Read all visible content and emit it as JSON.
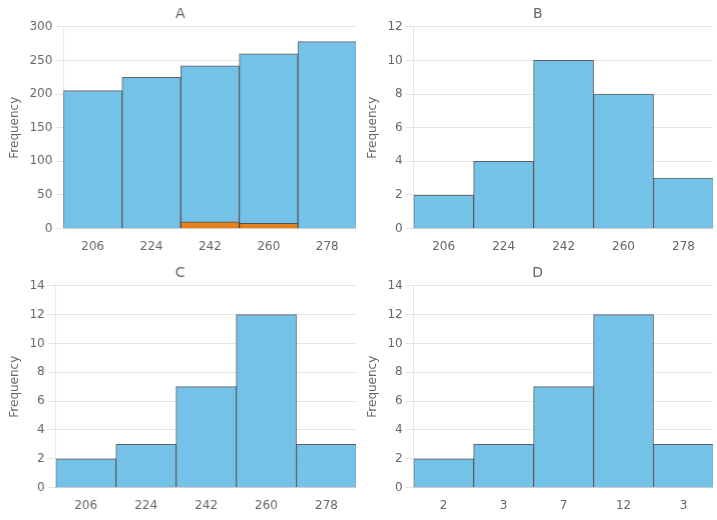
{
  "chart_data": [
    {
      "type": "bar",
      "title": "A",
      "categories": [
        "206",
        "224",
        "242",
        "260",
        "278"
      ],
      "series": [
        {
          "color": "#74C2E8",
          "values": [
            205,
            225,
            242,
            260,
            278
          ]
        },
        {
          "color": "#E8801A",
          "values": [
            0,
            0,
            10,
            8,
            0
          ]
        }
      ],
      "ylabel": "Frequency",
      "ylim": [
        0,
        300
      ],
      "yticks": [
        0,
        50,
        100,
        150,
        200,
        250,
        300
      ],
      "grid": "y"
    },
    {
      "type": "bar",
      "title": "B",
      "categories": [
        "206",
        "224",
        "242",
        "260",
        "278"
      ],
      "series": [
        {
          "color": "#74C2E8",
          "values": [
            2,
            4,
            10,
            8,
            3
          ]
        }
      ],
      "ylabel": "Frequency",
      "ylim": [
        0,
        12
      ],
      "yticks": [
        0,
        2,
        4,
        6,
        8,
        10,
        12
      ],
      "grid": "y"
    },
    {
      "type": "bar",
      "title": "C",
      "categories": [
        "206",
        "224",
        "242",
        "260",
        "278"
      ],
      "series": [
        {
          "color": "#74C2E8",
          "values": [
            2,
            3,
            7,
            12,
            3
          ]
        }
      ],
      "ylabel": "Frequency",
      "ylim": [
        0,
        14
      ],
      "yticks": [
        0,
        2,
        4,
        6,
        8,
        10,
        12,
        14
      ],
      "grid": "y"
    },
    {
      "type": "bar",
      "title": "D",
      "categories": [
        "2",
        "3",
        "7",
        "12",
        "3"
      ],
      "series": [
        {
          "color": "#74C2E8",
          "values": [
            2,
            3,
            7,
            12,
            3
          ]
        }
      ],
      "ylabel": "Frequency",
      "ylim": [
        0,
        14
      ],
      "yticks": [
        0,
        2,
        4,
        6,
        8,
        10,
        12,
        14
      ],
      "grid": "y"
    }
  ]
}
